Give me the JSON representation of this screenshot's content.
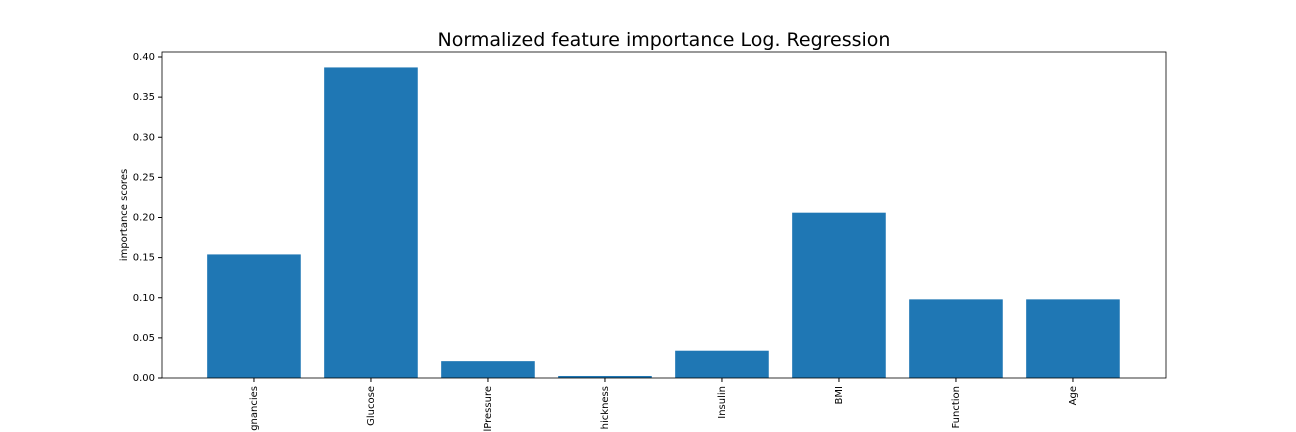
{
  "chart_data": {
    "type": "bar",
    "title": "Normalized feature importance Log. Regression",
    "y_label": "importance scores",
    "categories": [
      "gnancies",
      "Glucose",
      "lPressure",
      "hickness",
      "Insulin",
      "BMI",
      "Function",
      "Age"
    ],
    "values": [
      0.154,
      0.387,
      0.021,
      0.0025,
      0.034,
      0.206,
      0.098,
      0.098
    ],
    "color": "#1f77b4",
    "ylim": [
      0,
      0.4
    ],
    "yticks": [
      {
        "value": 0,
        "label": "0.00"
      },
      {
        "value": 0.05,
        "label": "0.05"
      },
      {
        "value": 0.1,
        "label": "0.10"
      },
      {
        "value": 0.15,
        "label": "0.15"
      },
      {
        "value": 0.2,
        "label": "0.20"
      },
      {
        "value": 0.25,
        "label": "0.25"
      },
      {
        "value": 0.3,
        "label": "0.30"
      },
      {
        "value": 0.35,
        "label": "0.35"
      },
      {
        "value": 0.4,
        "label": "0.40"
      }
    ],
    "grid": false
  }
}
